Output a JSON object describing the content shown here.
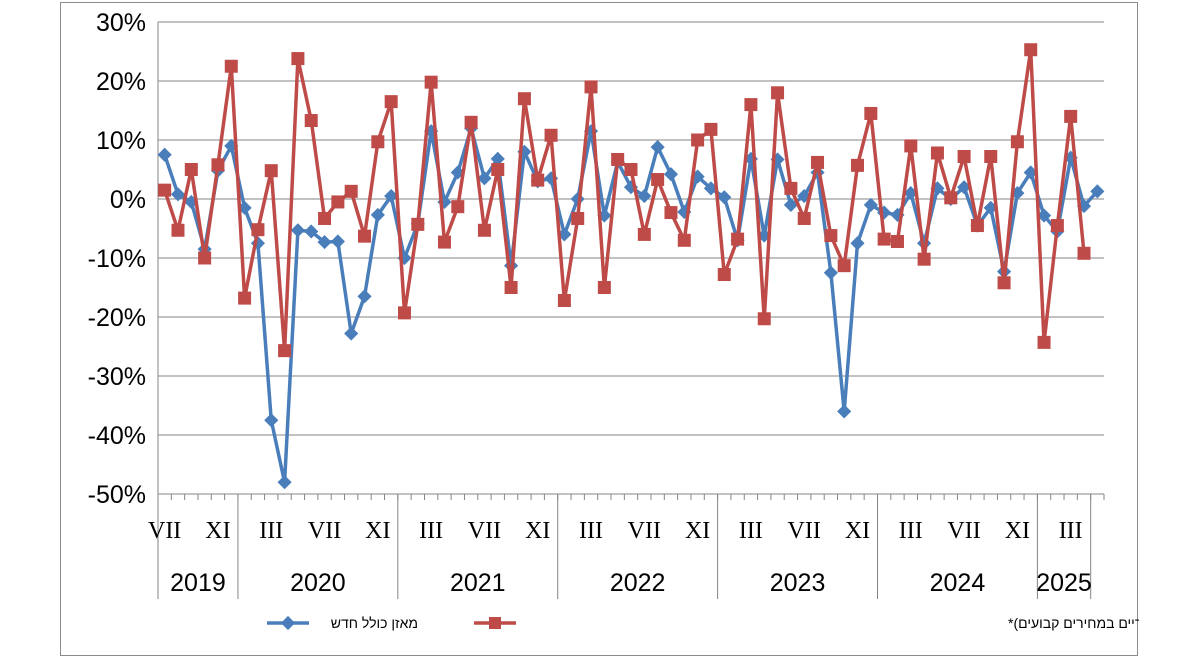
{
  "chart_data": {
    "type": "line",
    "title": "",
    "xlabel": "",
    "ylabel": "",
    "ylim": [
      -50,
      30
    ],
    "y_ticks": [
      "30%",
      "20%",
      "10%",
      "0%",
      "-10%",
      "-20%",
      "-30%",
      "-40%",
      "-50%"
    ],
    "y_tick_values": [
      30,
      20,
      10,
      0,
      -10,
      -20,
      -30,
      -40,
      -50
    ],
    "grid": "horizontal",
    "legend_position": "bottom",
    "month_labels": [
      {
        "index": 0,
        "label": "VII"
      },
      {
        "index": 4,
        "label": "XI"
      },
      {
        "index": 8,
        "label": "III"
      },
      {
        "index": 12,
        "label": "VII"
      },
      {
        "index": 16,
        "label": "XI"
      },
      {
        "index": 20,
        "label": "III"
      },
      {
        "index": 24,
        "label": "VII"
      },
      {
        "index": 28,
        "label": "XI"
      },
      {
        "index": 32,
        "label": "III"
      },
      {
        "index": 36,
        "label": "VII"
      },
      {
        "index": 40,
        "label": "XI"
      },
      {
        "index": 44,
        "label": "III"
      },
      {
        "index": 48,
        "label": "VII"
      },
      {
        "index": 52,
        "label": "XI"
      },
      {
        "index": 56,
        "label": "III"
      },
      {
        "index": 60,
        "label": "VII"
      },
      {
        "index": 64,
        "label": "XI"
      },
      {
        "index": 68,
        "label": "III"
      }
    ],
    "years": [
      {
        "label": "2019",
        "start": 0,
        "end": 6
      },
      {
        "label": "2020",
        "start": 6,
        "end": 18
      },
      {
        "label": "2021",
        "start": 18,
        "end": 30
      },
      {
        "label": "2022",
        "start": 30,
        "end": 42
      },
      {
        "label": "2023",
        "start": 42,
        "end": 54
      },
      {
        "label": "2024",
        "start": 54,
        "end": 66
      },
      {
        "label": "2025",
        "start": 66,
        "end": 70
      }
    ],
    "series": [
      {
        "name": "מאזן כולל חדש",
        "color": "#4a7ebb",
        "marker": "diamond",
        "values": [
          7.5,
          0.8,
          -0.5,
          -8.5,
          4.8,
          9.0,
          -1.5,
          -7.5,
          -37.5,
          -48.0,
          -5.3,
          -5.5,
          -7.3,
          -7.2,
          -22.8,
          -16.5,
          -2.7,
          0.5,
          -10.0,
          -4.2,
          11.5,
          -0.5,
          4.5,
          12.0,
          3.5,
          6.8,
          -11.3,
          8.0,
          3.0,
          3.5,
          -6.0,
          0.0,
          11.5,
          -2.8,
          6.3,
          2.0,
          0.5,
          8.8,
          4.2,
          -2.2,
          3.8,
          1.8,
          0.3,
          -7.0,
          6.8,
          -6.2,
          6.7,
          -1.0,
          0.5,
          4.5,
          -12.5,
          -36.0,
          -7.5,
          -1.0,
          -2.3,
          -2.7,
          1.0,
          -7.5,
          1.8,
          0.0,
          2.0,
          -4.5,
          -1.5,
          -12.3,
          1.0,
          4.5,
          -2.8,
          -5.5,
          7.0,
          -1.2,
          1.3
        ]
      },
      {
        "name": "השינוי במדד הפדיון לכלל ענפי המשק (נתונים מקוריים במחירים קבועים)*",
        "color": "#be4b48",
        "marker": "square",
        "values": [
          1.5,
          -5.3,
          5.0,
          -10.0,
          5.8,
          22.5,
          -16.8,
          -5.2,
          4.8,
          -25.7,
          23.8,
          13.3,
          -3.3,
          -0.5,
          1.3,
          -6.3,
          9.7,
          16.5,
          -19.3,
          -4.3,
          19.8,
          -7.3,
          -1.3,
          13.0,
          -5.3,
          5.0,
          -15.0,
          17.0,
          3.2,
          10.8,
          -17.2,
          -3.3,
          19.0,
          -15.0,
          6.7,
          5.0,
          -6.0,
          3.3,
          -2.3,
          -7.0,
          10.0,
          11.8,
          -12.8,
          -6.8,
          16.0,
          -20.3,
          18.0,
          1.8,
          -3.3,
          6.2,
          -6.2,
          -11.3,
          5.7,
          14.5,
          -6.8,
          -7.2,
          9.0,
          -10.2,
          7.8,
          0.2,
          7.2,
          -4.5,
          7.2,
          -14.2,
          9.7,
          25.3,
          -24.3,
          -4.5,
          14.0,
          -9.2
        ]
      }
    ]
  }
}
